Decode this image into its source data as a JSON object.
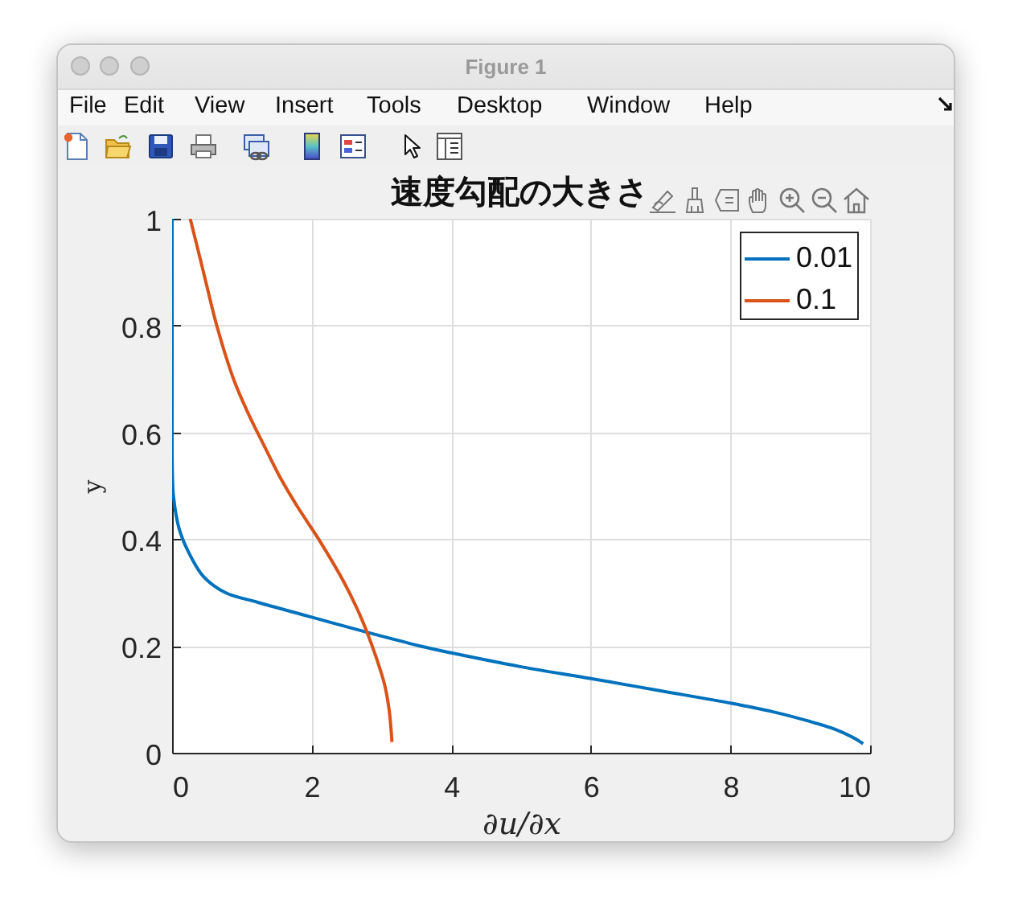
{
  "chart_data": {
    "type": "line",
    "title": "速度勾配の大きさ",
    "xlabel": "∂u/∂x",
    "ylabel": "y",
    "series": [
      {
        "name": "0.01",
        "color": "#0072bd",
        "x": [
          0,
          0,
          0.005,
          0.02,
          0.1,
          0.22,
          0.45,
          0.76,
          1.22,
          2.0,
          2.78,
          3.55,
          4.0,
          5,
          6,
          7,
          8,
          8.6,
          9.1,
          9.5,
          9.75,
          9.9
        ],
        "values": [
          1,
          0.57,
          0.52,
          0.48,
          0.42,
          0.38,
          0.33,
          0.3,
          0.282,
          0.254,
          0.226,
          0.2,
          0.187,
          0.161,
          0.139,
          0.116,
          0.093,
          0.077,
          0.06,
          0.044,
          0.029,
          0.017
        ]
      },
      {
        "name": "0.1",
        "color": "#d95319",
        "x": [
          0.26,
          0.45,
          0.64,
          0.88,
          1.11,
          1.3,
          1.53,
          1.8,
          2.1,
          2.46,
          2.65,
          2.78,
          2.92,
          3.04,
          3.11,
          3.15
        ],
        "values": [
          1,
          0.9,
          0.8,
          0.7,
          0.63,
          0.58,
          0.52,
          0.46,
          0.4,
          0.32,
          0.27,
          0.23,
          0.18,
          0.13,
          0.08,
          0.02
        ]
      }
    ],
    "xlim": [
      0,
      10
    ],
    "xticks": [
      0,
      2,
      4,
      6,
      8,
      10
    ],
    "ylim": [
      0,
      1
    ],
    "yticks": [
      0,
      0.2,
      0.4,
      0.6,
      0.8,
      1
    ],
    "grid": true,
    "legend": "top right",
    "annotations": [
      "Figure 1",
      "File",
      "Edit",
      "View",
      "Insert",
      "Tools",
      "Desktop",
      "Window",
      "Help"
    ]
  }
}
